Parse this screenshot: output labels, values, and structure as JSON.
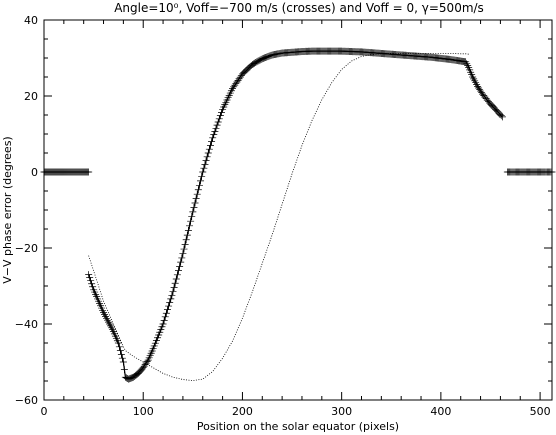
{
  "chart_data": {
    "type": "line",
    "title": "Angle=10⁰, Voff=−700 m/s (crosses) and Voff = 0, γ=500m/s",
    "xlabel": "Position on the solar equator (pixels)",
    "ylabel": "V−V phase error (degrees)",
    "xlim": [
      0,
      512
    ],
    "ylim": [
      -60,
      40
    ],
    "xticks": [
      0,
      100,
      200,
      300,
      400,
      500
    ],
    "xtick_labels": [
      "0",
      "100",
      "200",
      "300",
      "400",
      "500"
    ],
    "yticks": [
      -60,
      -40,
      -20,
      0,
      20,
      40
    ],
    "ytick_labels": [
      "−60",
      "−40",
      "−20",
      "0",
      "20",
      "40"
    ],
    "grid": false,
    "series": [
      {
        "name": "crosses",
        "marker": "cross",
        "segments": [
          {
            "x": [
              0,
              5,
              10,
              15,
              20,
              25,
              30,
              35,
              40,
              45
            ],
            "y": [
              0,
              0,
              0,
              0,
              0,
              0,
              0,
              0,
              0,
              0
            ]
          },
          {
            "x": [
              45,
              50,
              55,
              60,
              65,
              70,
              75,
              80,
              82,
              85,
              90,
              95,
              100,
              105,
              110,
              120,
              130,
              140,
              150,
              160,
              170,
              180,
              190,
              200,
              210,
              220,
              230,
              240,
              250,
              260,
              270,
              280,
              290,
              300,
              310,
              320,
              330,
              340,
              350,
              360,
              370,
              380,
              390,
              400,
              410,
              420,
              425,
              428,
              432,
              437,
              442,
              448,
              455,
              462
            ],
            "y": [
              -27,
              -31,
              -34,
              -37,
              -39.5,
              -42,
              -45,
              -50,
              -54,
              -54.5,
              -54,
              -53,
              -51.5,
              -49.5,
              -46.5,
              -40,
              -31.5,
              -21.5,
              -10.5,
              0,
              9,
              16.5,
              22,
              25.8,
              28.3,
              29.8,
              30.8,
              31.3,
              31.5,
              31.7,
              31.8,
              31.8,
              31.8,
              31.8,
              31.7,
              31.6,
              31.4,
              31.2,
              31,
              30.8,
              30.6,
              30.4,
              30.2,
              29.9,
              29.6,
              29.2,
              29,
              27.5,
              25,
              22.5,
              20.5,
              18.5,
              16.5,
              14.5
            ]
          },
          {
            "x": [
              467,
              475,
              485,
              495,
              505,
              512
            ],
            "y": [
              0,
              0,
              0,
              0,
              0,
              0
            ]
          }
        ]
      },
      {
        "name": "Voff = 0",
        "marker": "line",
        "segments": [
          {
            "x": [
              45,
              50,
              55,
              60,
              65,
              70,
              75,
              80,
              82,
              90,
              100,
              110,
              120,
              130,
              140,
              150,
              160,
              170,
              180,
              190,
              200,
              210,
              220,
              230,
              240,
              250,
              260,
              270,
              280,
              290,
              300,
              310,
              320,
              330,
              340,
              350,
              360,
              370,
              380,
              390,
              400,
              410,
              420,
              425,
              428
            ],
            "y": [
              -22,
              -26,
              -30,
              -34,
              -37,
              -40,
              -43,
              -46,
              -47,
              -48.5,
              -50,
              -51.5,
              -53,
              -54,
              -54.6,
              -54.9,
              -54.5,
              -52.5,
              -49,
              -44.5,
              -38.5,
              -31.5,
              -24,
              -16.5,
              -8.5,
              -0.5,
              7,
              13.5,
              19,
              23.5,
              27,
              29.2,
              30.4,
              30.9,
              31.1,
              31.2,
              31.2,
              31.2,
              31.2,
              31.2,
              31.2,
              31.2,
              31.1,
              31.1,
              31
            ]
          }
        ]
      }
    ]
  }
}
